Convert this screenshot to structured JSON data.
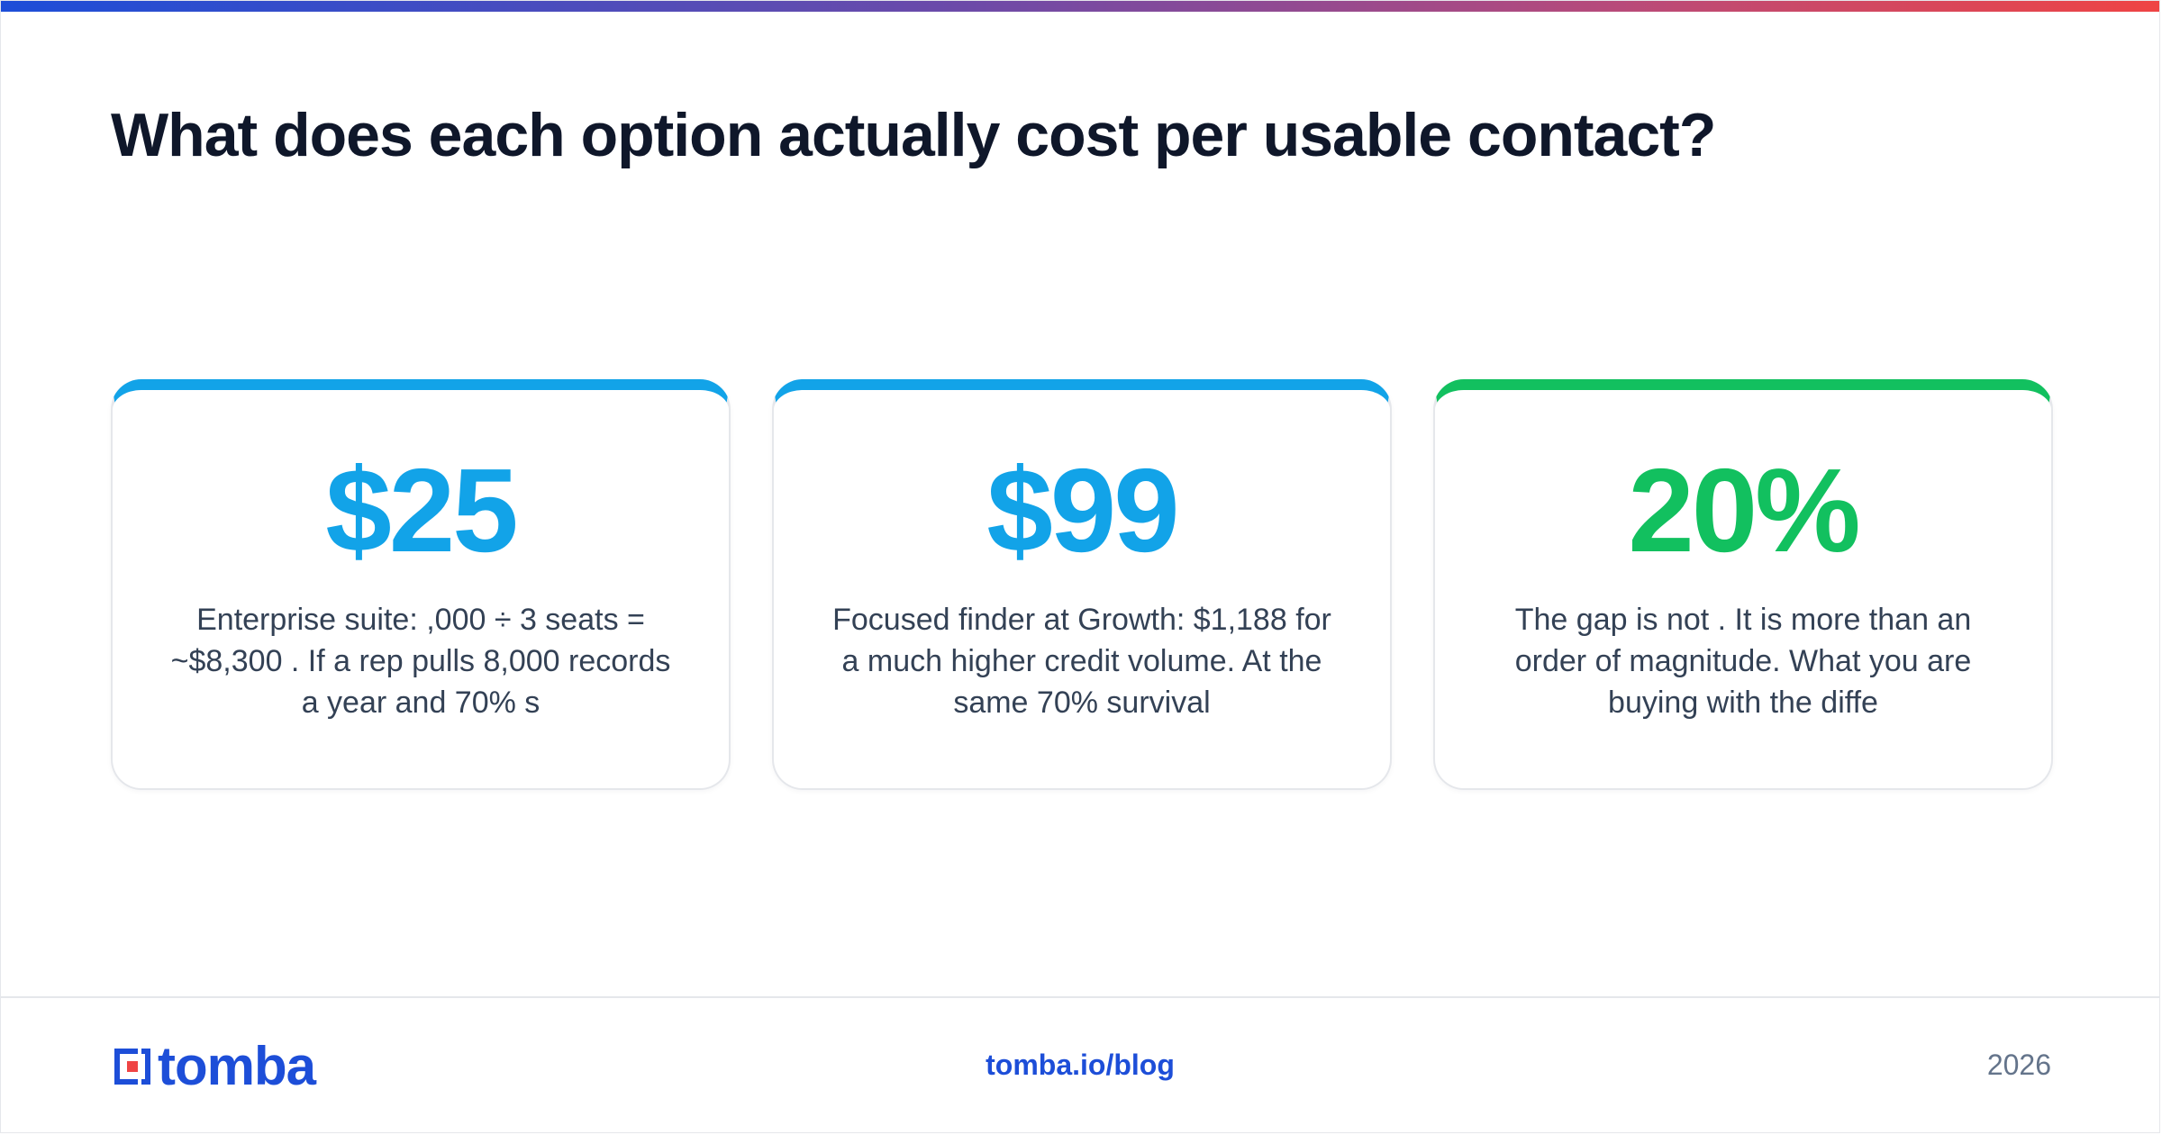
{
  "title": "What does each option actually cost per usable contact?",
  "cards": [
    {
      "value": "$25",
      "description": "Enterprise suite: ,000 ÷ 3 seats = ~$8,300 . If a rep pulls 8,000 records a year and 70% s",
      "accent_color": "#12a3e8"
    },
    {
      "value": "$99",
      "description": "Focused finder at Growth: $1,188 for a much higher credit volume. At the same 70% survival",
      "accent_color": "#12a3e8"
    },
    {
      "value": "20%",
      "description": "The gap is not . It is more than an order of magnitude. What you are buying with the diffe",
      "accent_color": "#12c05f"
    }
  ],
  "footer": {
    "logo_text": "tomba",
    "logo_icon": "tomba-logo-icon",
    "link": "tomba.io/blog",
    "year": "2026"
  },
  "colors": {
    "title": "#0f172a",
    "brand_blue": "#1d4ed8",
    "accent_blue": "#12a3e8",
    "accent_green": "#12c05f",
    "text": "#334155",
    "muted": "#64748b"
  }
}
